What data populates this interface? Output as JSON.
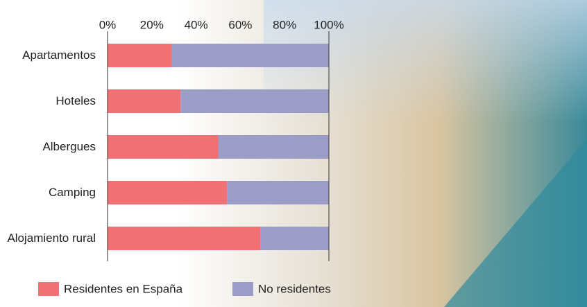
{
  "chart_data": {
    "type": "stacked_bar_horizontal",
    "categories": [
      "Apartamentos",
      "Hoteles",
      "Albergues",
      "Camping",
      "Alojamiento rural"
    ],
    "series": [
      {
        "name": "Residentes en España",
        "color": "#f07073",
        "values": [
          29,
          33,
          50,
          54,
          69
        ]
      },
      {
        "name": "No residentes",
        "color": "#9c9dc6",
        "values": [
          71,
          67,
          50,
          46,
          31
        ]
      }
    ],
    "xlim": [
      0,
      100
    ],
    "xticks": [
      {
        "value": 0,
        "label": "0%"
      },
      {
        "value": 20,
        "label": "20%"
      },
      {
        "value": 40,
        "label": "40%"
      },
      {
        "value": 60,
        "label": "60%"
      },
      {
        "value": 80,
        "label": "80%"
      },
      {
        "value": 100,
        "label": "100%"
      }
    ]
  }
}
